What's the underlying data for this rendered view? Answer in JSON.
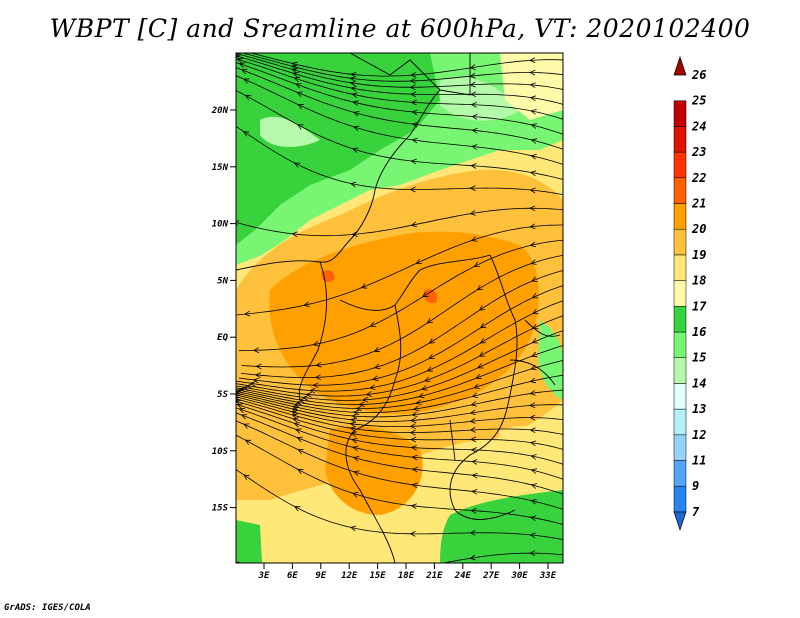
{
  "title": "WBPT [C] and Sreamline at 600hPa, VT: 2020102400",
  "credit": "GrADS: IGES/COLA",
  "map": {
    "lat_ticks": [
      "20N",
      "15N",
      "10N",
      "5N",
      "EQ",
      "5S",
      "10S",
      "15S"
    ],
    "lon_ticks": [
      "3E",
      "6E",
      "9E",
      "12E",
      "15E",
      "18E",
      "21E",
      "24E",
      "27E",
      "30E",
      "33E"
    ]
  },
  "colorbar": {
    "levels": [
      "7",
      "9",
      "11",
      "12",
      "13",
      "14",
      "15",
      "16",
      "17",
      "18",
      "19",
      "20",
      "21",
      "22",
      "23",
      "24",
      "25",
      "26"
    ],
    "colors": [
      "#1e64d2",
      "#2882f0",
      "#50a5f5",
      "#96d2fa",
      "#b4f0fa",
      "#e1ffff",
      "#b4faaa",
      "#78f573",
      "#37d23c",
      "#fffaaa",
      "#ffe878",
      "#ffc03c",
      "#ffa000",
      "#ff6000",
      "#ff3200",
      "#e11400",
      "#c00000",
      "#a50000"
    ]
  }
}
